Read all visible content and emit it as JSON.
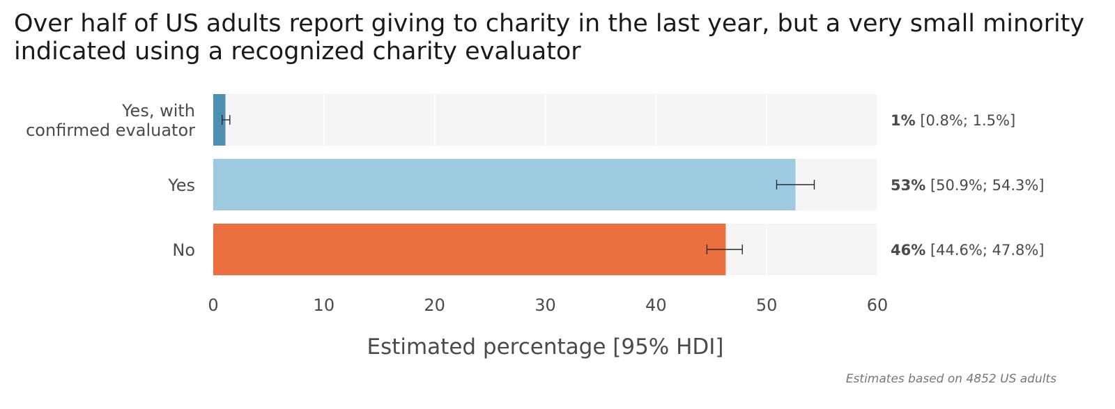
{
  "title_lines": [
    "Over half of US adults report giving to charity in the last year, but a very small minority",
    "indicated using a recognized charity evaluator"
  ],
  "caption": "Estimates based on 4852 US adults",
  "colors": {
    "panel_bg": "#f5f5f5",
    "grid": "#ffffff",
    "error_bar": "#2b2b2b",
    "text": "#4a4a4a"
  },
  "chart_data": {
    "type": "bar",
    "orientation": "horizontal",
    "xlabel": "Estimated percentage [95% HDI]",
    "ylabel": "",
    "xlim": [
      0,
      60
    ],
    "xticks": [
      0,
      10,
      20,
      30,
      40,
      50,
      60
    ],
    "grid": true,
    "categories": [
      "Yes, with confirmed evaluator",
      "Yes",
      "No"
    ],
    "category_lines": [
      [
        "Yes, with",
        "confirmed evaluator"
      ],
      [
        "Yes"
      ],
      [
        "No"
      ]
    ],
    "values": [
      1.1,
      52.6,
      46.3
    ],
    "ci_low": [
      0.8,
      50.9,
      44.6
    ],
    "ci_high": [
      1.5,
      54.3,
      47.8
    ],
    "bar_colors": [
      "#4f8fb3",
      "#9ecae1",
      "#ec703f"
    ],
    "data_labels": [
      {
        "bold": "1%",
        "interval": "[0.8%; 1.5%]"
      },
      {
        "bold": "53%",
        "interval": "[50.9%; 54.3%]"
      },
      {
        "bold": "46%",
        "interval": "[44.6%; 47.8%]"
      }
    ]
  }
}
